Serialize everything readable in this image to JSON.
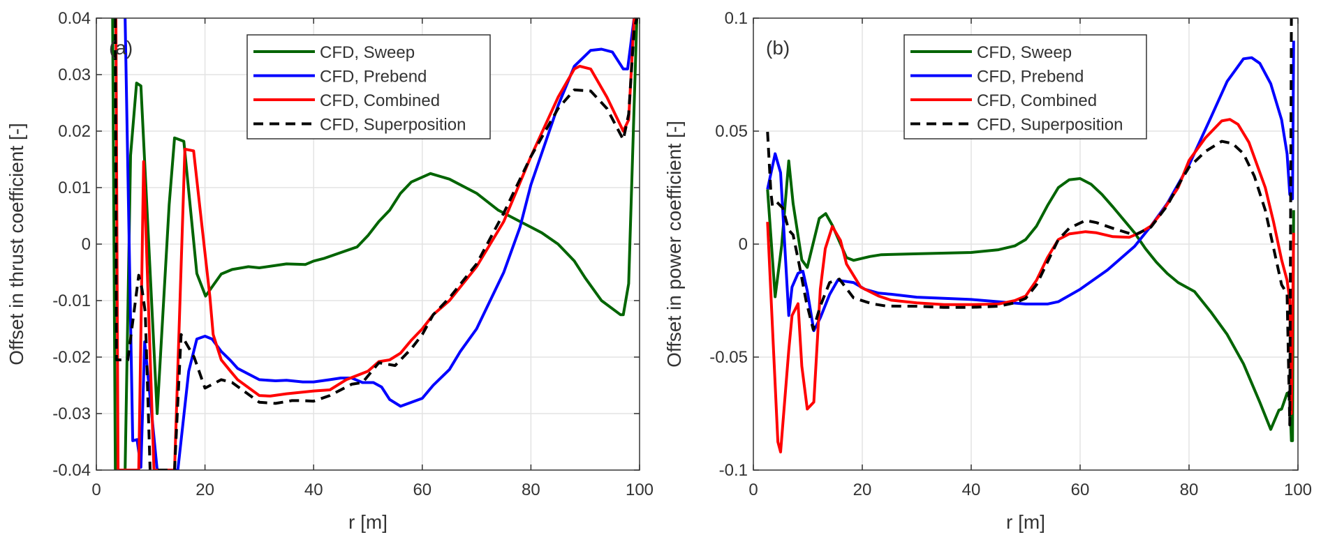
{
  "chart_data": [
    {
      "type": "line",
      "panel_label": "(a)",
      "xlabel": "r [m]",
      "ylabel": "Offset in thrust coefficient [-]",
      "xlim": [
        0,
        100
      ],
      "ylim": [
        -0.04,
        0.04
      ],
      "xticks": [
        0,
        20,
        40,
        60,
        80,
        100
      ],
      "xtick_labels": [
        "0",
        "20",
        "40",
        "60",
        "80",
        "100"
      ],
      "yticks": [
        -0.04,
        -0.03,
        -0.02,
        -0.01,
        0,
        0.01,
        0.02,
        0.03,
        0.04
      ],
      "ytick_labels": [
        "-0.04",
        "-0.03",
        "-0.02",
        "-0.01",
        "0",
        "0.01",
        "0.02",
        "0.03",
        "0.04"
      ],
      "grid": true,
      "legend_position": "top-center",
      "series": [
        {
          "name": "CFD, Sweep",
          "color": "#006400",
          "dash": false,
          "x": [
            3,
            3.5,
            5.3,
            6.3,
            7.4,
            8.2,
            11.2,
            13.4,
            14.4,
            16.1,
            18.5,
            20.1,
            23,
            25,
            28,
            30,
            35,
            38.5,
            40,
            42,
            45,
            48,
            50,
            52,
            54,
            56,
            58,
            61.5,
            65,
            70,
            74,
            78,
            82,
            85,
            88,
            90,
            93,
            96.5,
            97,
            98,
            99.5
          ],
          "y": [
            0.05,
            -0.06,
            -0.06,
            0.0157,
            0.0285,
            0.028,
            -0.03,
            0.007,
            0.0188,
            0.0182,
            -0.0052,
            -0.0092,
            -0.0053,
            -0.0045,
            -0.004,
            -0.0042,
            -0.0035,
            -0.0036,
            -0.003,
            -0.0025,
            -0.0015,
            -0.0005,
            0.0015,
            0.004,
            0.006,
            0.009,
            0.011,
            0.0125,
            0.0115,
            0.009,
            0.006,
            0.004,
            0.002,
            0,
            -0.003,
            -0.006,
            -0.01,
            -0.0125,
            -0.0125,
            -0.007,
            0.05
          ]
        },
        {
          "name": "CFD, Prebend",
          "color": "#0000ff",
          "dash": false,
          "x": [
            5.3,
            6.7,
            7.5,
            8.2,
            8.9,
            11.2,
            15,
            17,
            18.5,
            20,
            21.3,
            23,
            24.7,
            26,
            30,
            33,
            35,
            38,
            40,
            43,
            45,
            47,
            49,
            51,
            52.5,
            54,
            56,
            60,
            62,
            65,
            67,
            70,
            75,
            78,
            80,
            85,
            88,
            91,
            93,
            95,
            97,
            97.8,
            99,
            99.5
          ],
          "y": [
            0.05,
            -0.0348,
            -0.0346,
            -0.0395,
            -0.0173,
            -0.06,
            -0.06,
            -0.0225,
            -0.0168,
            -0.0163,
            -0.0168,
            -0.019,
            -0.0206,
            -0.022,
            -0.024,
            -0.0242,
            -0.0241,
            -0.0244,
            -0.0244,
            -0.024,
            -0.0237,
            -0.0237,
            -0.0245,
            -0.0245,
            -0.0253,
            -0.0275,
            -0.0287,
            -0.0273,
            -0.025,
            -0.0222,
            -0.019,
            -0.015,
            -0.005,
            0.003,
            0.0105,
            0.0245,
            0.0315,
            0.0343,
            0.0345,
            0.034,
            0.031,
            0.031,
            0.04,
            0.05
          ]
        },
        {
          "name": "CFD, Combined",
          "color": "#ff0000",
          "dash": false,
          "x": [
            3.6,
            4,
            7.8,
            8.7,
            10.6,
            14.4,
            16.3,
            17.9,
            19,
            20.9,
            21.5,
            23,
            24.7,
            26,
            30,
            32,
            35,
            40,
            43,
            46,
            50,
            52,
            54,
            56,
            58,
            60,
            62,
            65,
            70,
            75,
            80,
            85,
            88,
            89,
            91,
            94,
            97,
            98,
            99,
            99.5
          ],
          "y": [
            0.05,
            -0.06,
            -0.06,
            0.0146,
            -0.06,
            -0.06,
            0.0168,
            0.0165,
            0.007,
            -0.0093,
            -0.016,
            -0.0205,
            -0.0225,
            -0.024,
            -0.0268,
            -0.0269,
            -0.0265,
            -0.026,
            -0.0258,
            -0.024,
            -0.0225,
            -0.0208,
            -0.0205,
            -0.0193,
            -0.017,
            -0.015,
            -0.0125,
            -0.01,
            -0.004,
            0.004,
            0.0155,
            0.026,
            0.031,
            0.0315,
            0.031,
            0.026,
            0.02,
            0.022,
            0.04,
            0.05
          ]
        },
        {
          "name": "CFD, Superposition",
          "color": "#000000",
          "dash": true,
          "x": [
            3.5,
            3.7,
            5.8,
            7.8,
            8.4,
            9,
            9.9,
            14.4,
            15.6,
            18,
            20,
            23,
            25,
            30,
            33,
            36,
            38,
            40,
            43,
            47,
            49,
            52,
            55,
            58,
            60,
            62,
            65,
            70,
            75,
            80,
            85,
            88,
            91,
            94,
            97,
            98,
            99,
            99.5
          ],
          "y": [
            0.05,
            -0.0205,
            -0.0205,
            -0.0055,
            -0.008,
            -0.012,
            -0.06,
            -0.06,
            -0.016,
            -0.02,
            -0.0255,
            -0.024,
            -0.0245,
            -0.028,
            -0.0282,
            -0.0277,
            -0.0277,
            -0.0278,
            -0.0268,
            -0.0248,
            -0.0245,
            -0.021,
            -0.0215,
            -0.0185,
            -0.016,
            -0.0125,
            -0.0095,
            -0.0035,
            0.0055,
            0.0155,
            0.024,
            0.0273,
            0.0271,
            0.024,
            0.0185,
            0.023,
            0.038,
            0.05
          ]
        }
      ]
    },
    {
      "type": "line",
      "panel_label": "(b)",
      "xlabel": "r [m]",
      "ylabel": "Offset in power coefficient [-]",
      "xlim": [
        0,
        100
      ],
      "ylim": [
        -0.1,
        0.1
      ],
      "xticks": [
        0,
        20,
        40,
        60,
        80,
        100
      ],
      "xtick_labels": [
        "0",
        "20",
        "40",
        "60",
        "80",
        "100"
      ],
      "yticks": [
        -0.1,
        -0.05,
        0,
        0.05,
        0.1
      ],
      "ytick_labels": [
        "-0.1",
        "-0.05",
        "0",
        "0.05",
        "0.1"
      ],
      "grid": true,
      "legend_position": "top-center",
      "series": [
        {
          "name": "CFD, Sweep",
          "color": "#006400",
          "dash": false,
          "x": [
            2.6,
            4,
            5.2,
            6.5,
            7.3,
            8.9,
            9.9,
            12.1,
            13.3,
            14.5,
            17.1,
            18.4,
            21.4,
            23.5,
            30,
            40,
            45,
            48,
            50,
            52,
            54,
            56,
            58,
            60,
            62,
            64,
            66,
            70,
            72,
            74,
            76,
            78,
            81,
            84,
            87,
            90,
            93,
            95,
            96.5,
            97,
            98,
            98.5,
            98.8,
            99,
            99.2
          ],
          "y": [
            0.0243,
            -0.0233,
            -0.0005,
            0.0368,
            0.018,
            -0.007,
            -0.0103,
            0.0114,
            0.0135,
            0.0083,
            -0.006,
            -0.0072,
            -0.0055,
            -0.0047,
            -0.0043,
            -0.0037,
            -0.0025,
            -0.0008,
            0.002,
            0.008,
            0.017,
            0.025,
            0.0285,
            0.029,
            0.0265,
            0.022,
            0.0165,
            0.005,
            -0.002,
            -0.008,
            -0.013,
            -0.017,
            -0.021,
            -0.03,
            -0.04,
            -0.053,
            -0.07,
            -0.082,
            -0.0735,
            -0.073,
            -0.066,
            -0.068,
            -0.087,
            -0.087,
            0.015
          ]
        },
        {
          "name": "CFD, Prebend",
          "color": "#0000ff",
          "dash": false,
          "x": [
            2.6,
            4,
            5,
            6.5,
            7.1,
            8.2,
            9.1,
            9.9,
            11.1,
            12.3,
            14,
            15.5,
            18.4,
            20.5,
            23,
            25.3,
            30,
            35,
            40,
            45,
            50,
            54,
            56,
            60,
            65,
            70,
            73,
            76,
            80,
            84,
            87,
            90,
            91.5,
            93,
            95,
            97,
            98,
            98.5,
            99,
            99.2
          ],
          "y": [
            0.0243,
            0.04,
            0.0316,
            -0.0316,
            -0.019,
            -0.0129,
            -0.012,
            -0.0207,
            -0.0383,
            -0.0326,
            -0.0223,
            -0.016,
            -0.017,
            -0.02,
            -0.0217,
            -0.0222,
            -0.0235,
            -0.024,
            -0.0245,
            -0.0255,
            -0.0265,
            -0.0265,
            -0.0255,
            -0.02,
            -0.0115,
            -0.001,
            0.008,
            0.018,
            0.035,
            0.056,
            0.072,
            0.082,
            0.0825,
            0.08,
            0.071,
            0.055,
            0.04,
            0.022,
            0.02,
            0.09
          ]
        },
        {
          "name": "CFD, Combined",
          "color": "#ff0000",
          "dash": false,
          "x": [
            2.6,
            3.7,
            4.5,
            5,
            6.5,
            7.1,
            8.2,
            8.9,
            9.9,
            11.1,
            12.3,
            13.2,
            14.5,
            16,
            17.1,
            19.7,
            23,
            25.3,
            30,
            35,
            40,
            45,
            48,
            50,
            52,
            54,
            56,
            58,
            61,
            63,
            66,
            69,
            71,
            73,
            75,
            78,
            80,
            83,
            86,
            87.5,
            89,
            91,
            94,
            95.5,
            97,
            98,
            98.5,
            98.8,
            99.2
          ],
          "y": [
            0.0098,
            -0.047,
            -0.0875,
            -0.092,
            -0.047,
            -0.0316,
            -0.0264,
            -0.054,
            -0.073,
            -0.0699,
            -0.02,
            -0.002,
            0.0078,
            0.0016,
            -0.0088,
            -0.019,
            -0.023,
            -0.0248,
            -0.026,
            -0.0268,
            -0.0268,
            -0.0265,
            -0.025,
            -0.023,
            -0.016,
            -0.006,
            0.002,
            0.0045,
            0.0055,
            0.005,
            0.0033,
            0.003,
            0.005,
            0.008,
            0.014,
            0.025,
            0.037,
            0.047,
            0.0545,
            0.0552,
            0.053,
            0.045,
            0.025,
            0.01,
            -0.007,
            -0.016,
            -0.025,
            -0.075,
            0.005
          ]
        },
        {
          "name": "CFD, Superposition",
          "color": "#000000",
          "dash": true,
          "x": [
            2.6,
            3.2,
            3.5,
            4.3,
            5.4,
            6.5,
            7.3,
            8.4,
            9.7,
            11,
            12.3,
            14,
            15.8,
            18.4,
            21.8,
            24.4,
            30,
            35,
            40,
            45,
            48,
            50,
            52,
            54,
            56,
            58,
            61,
            63,
            66,
            70,
            73,
            76,
            78,
            80,
            83,
            86,
            88,
            90,
            92,
            94,
            96,
            97,
            98,
            98.5,
            98.8
          ],
          "y": [
            0.0497,
            0.0233,
            0.017,
            0.0186,
            0.016,
            0.0062,
            0.0041,
            -0.0088,
            -0.0254,
            -0.0378,
            -0.0274,
            -0.017,
            -0.0155,
            -0.0238,
            -0.0264,
            -0.0274,
            -0.0275,
            -0.028,
            -0.028,
            -0.0275,
            -0.026,
            -0.024,
            -0.018,
            -0.008,
            0.002,
            0.007,
            0.0105,
            0.0095,
            0.007,
            0.004,
            0.0075,
            0.017,
            0.026,
            0.034,
            0.041,
            0.0455,
            0.0445,
            0.04,
            0.03,
            0.015,
            -0.007,
            -0.018,
            -0.022,
            -0.08,
            0.1
          ]
        }
      ]
    }
  ]
}
